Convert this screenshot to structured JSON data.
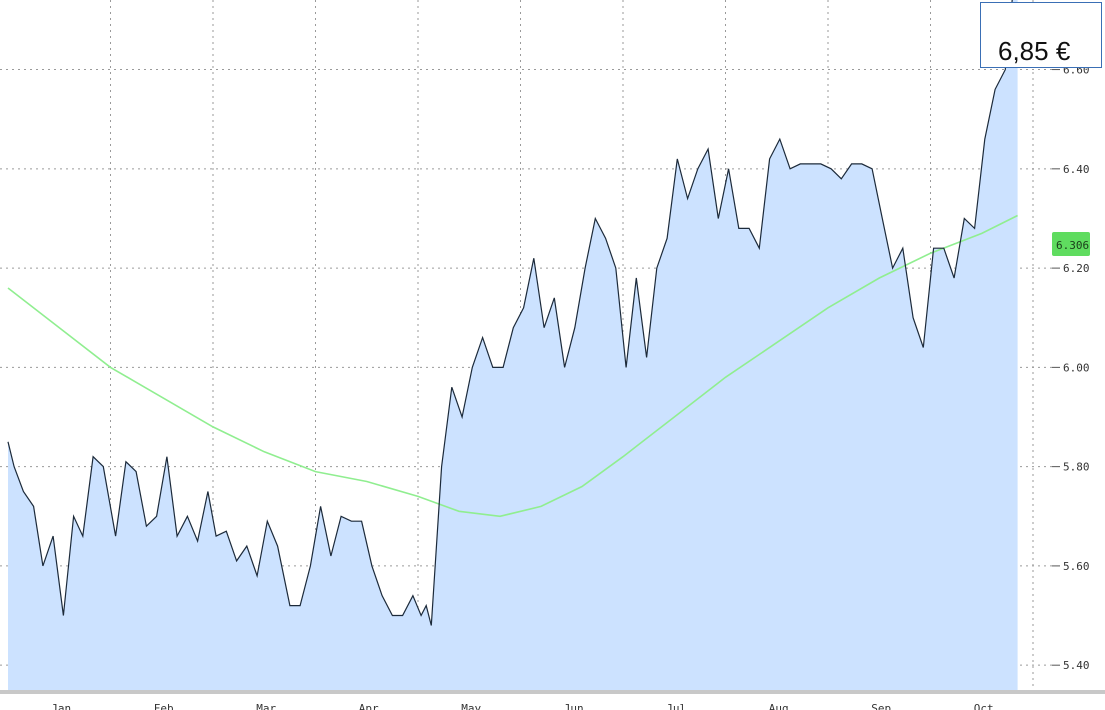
{
  "chart_data": {
    "type": "area",
    "title": "",
    "xlabel": "",
    "ylabel": "",
    "months": [
      "Jan",
      "Feb",
      "Mar",
      "Apr",
      "May",
      "Jun",
      "Jul",
      "Aug",
      "Sep",
      "Oct"
    ],
    "yticks": [
      "6.60",
      "6.40",
      "6.20",
      "6.00",
      "5.80",
      "5.60",
      "5.40"
    ],
    "ylim": [
      5.35,
      6.72
    ],
    "grid": true,
    "fill_color": "#cce2ff",
    "ma_color": "#90ee90",
    "ma_label_bg": "#5fdc5f",
    "last_ma_value": "6.306",
    "price_label": "6,85 €",
    "series": [
      {
        "name": "",
        "x": [
          0.0,
          0.06,
          0.15,
          0.25,
          0.34,
          0.44,
          0.54,
          0.64,
          0.73,
          0.83,
          0.93,
          1.05,
          1.15,
          1.25,
          1.35,
          1.45,
          1.55,
          1.65,
          1.75,
          1.85,
          1.95,
          2.03,
          2.13,
          2.23,
          2.33,
          2.43,
          2.53,
          2.63,
          2.75,
          2.85,
          2.95,
          3.05,
          3.15,
          3.25,
          3.35,
          3.45,
          3.55,
          3.65,
          3.75,
          3.85,
          3.95,
          4.03,
          4.08,
          4.13,
          4.23,
          4.33,
          4.43,
          4.53,
          4.63,
          4.73,
          4.83,
          4.93,
          5.03,
          5.13,
          5.23,
          5.33,
          5.43,
          5.53,
          5.63,
          5.73,
          5.83,
          5.93,
          6.03,
          6.13,
          6.23,
          6.33,
          6.43,
          6.53,
          6.63,
          6.73,
          6.83,
          6.93,
          7.03,
          7.13,
          7.23,
          7.33,
          7.43,
          7.53,
          7.63,
          7.73,
          7.83,
          7.93,
          8.03,
          8.13,
          8.23,
          8.33,
          8.43,
          8.53,
          8.63,
          8.73,
          8.83,
          8.93,
          9.03,
          9.13,
          9.23,
          9.33,
          9.43,
          9.53,
          9.63,
          9.73,
          9.85
        ],
        "values": [
          5.85,
          5.8,
          5.75,
          5.72,
          5.6,
          5.66,
          5.5,
          5.7,
          5.66,
          5.82,
          5.8,
          5.66,
          5.81,
          5.79,
          5.68,
          5.7,
          5.82,
          5.66,
          5.7,
          5.65,
          5.75,
          5.66,
          5.67,
          5.61,
          5.64,
          5.58,
          5.69,
          5.64,
          5.52,
          5.52,
          5.6,
          5.72,
          5.62,
          5.7,
          5.69,
          5.69,
          5.6,
          5.54,
          5.5,
          5.5,
          5.54,
          5.5,
          5.52,
          5.48,
          5.8,
          5.96,
          5.9,
          6.0,
          6.06,
          6.0,
          6.0,
          6.08,
          6.12,
          6.22,
          6.08,
          6.14,
          6.0,
          6.08,
          6.2,
          6.3,
          6.26,
          6.2,
          6.0,
          6.18,
          6.02,
          6.2,
          6.26,
          6.42,
          6.34,
          6.4,
          6.44,
          6.3,
          6.4,
          6.28,
          6.28,
          6.24,
          6.42,
          6.46,
          6.4,
          6.41,
          6.41,
          6.41,
          6.4,
          6.38,
          6.41,
          6.41,
          6.4,
          6.3,
          6.2,
          6.24,
          6.1,
          6.04,
          6.24,
          6.24,
          6.18,
          6.3,
          6.28,
          6.46,
          6.56,
          6.6,
          6.85
        ]
      }
    ],
    "moving_average": {
      "x": [
        0.0,
        0.5,
        1.0,
        1.5,
        2.0,
        2.5,
        3.0,
        3.5,
        4.0,
        4.4,
        4.8,
        5.2,
        5.6,
        6.0,
        6.5,
        7.0,
        7.5,
        8.0,
        8.5,
        9.0,
        9.5,
        9.85
      ],
      "values": [
        6.16,
        6.08,
        6.0,
        5.94,
        5.88,
        5.83,
        5.79,
        5.77,
        5.74,
        5.71,
        5.7,
        5.72,
        5.76,
        5.82,
        5.9,
        5.98,
        6.05,
        6.12,
        6.18,
        6.23,
        6.27,
        6.306
      ]
    }
  }
}
